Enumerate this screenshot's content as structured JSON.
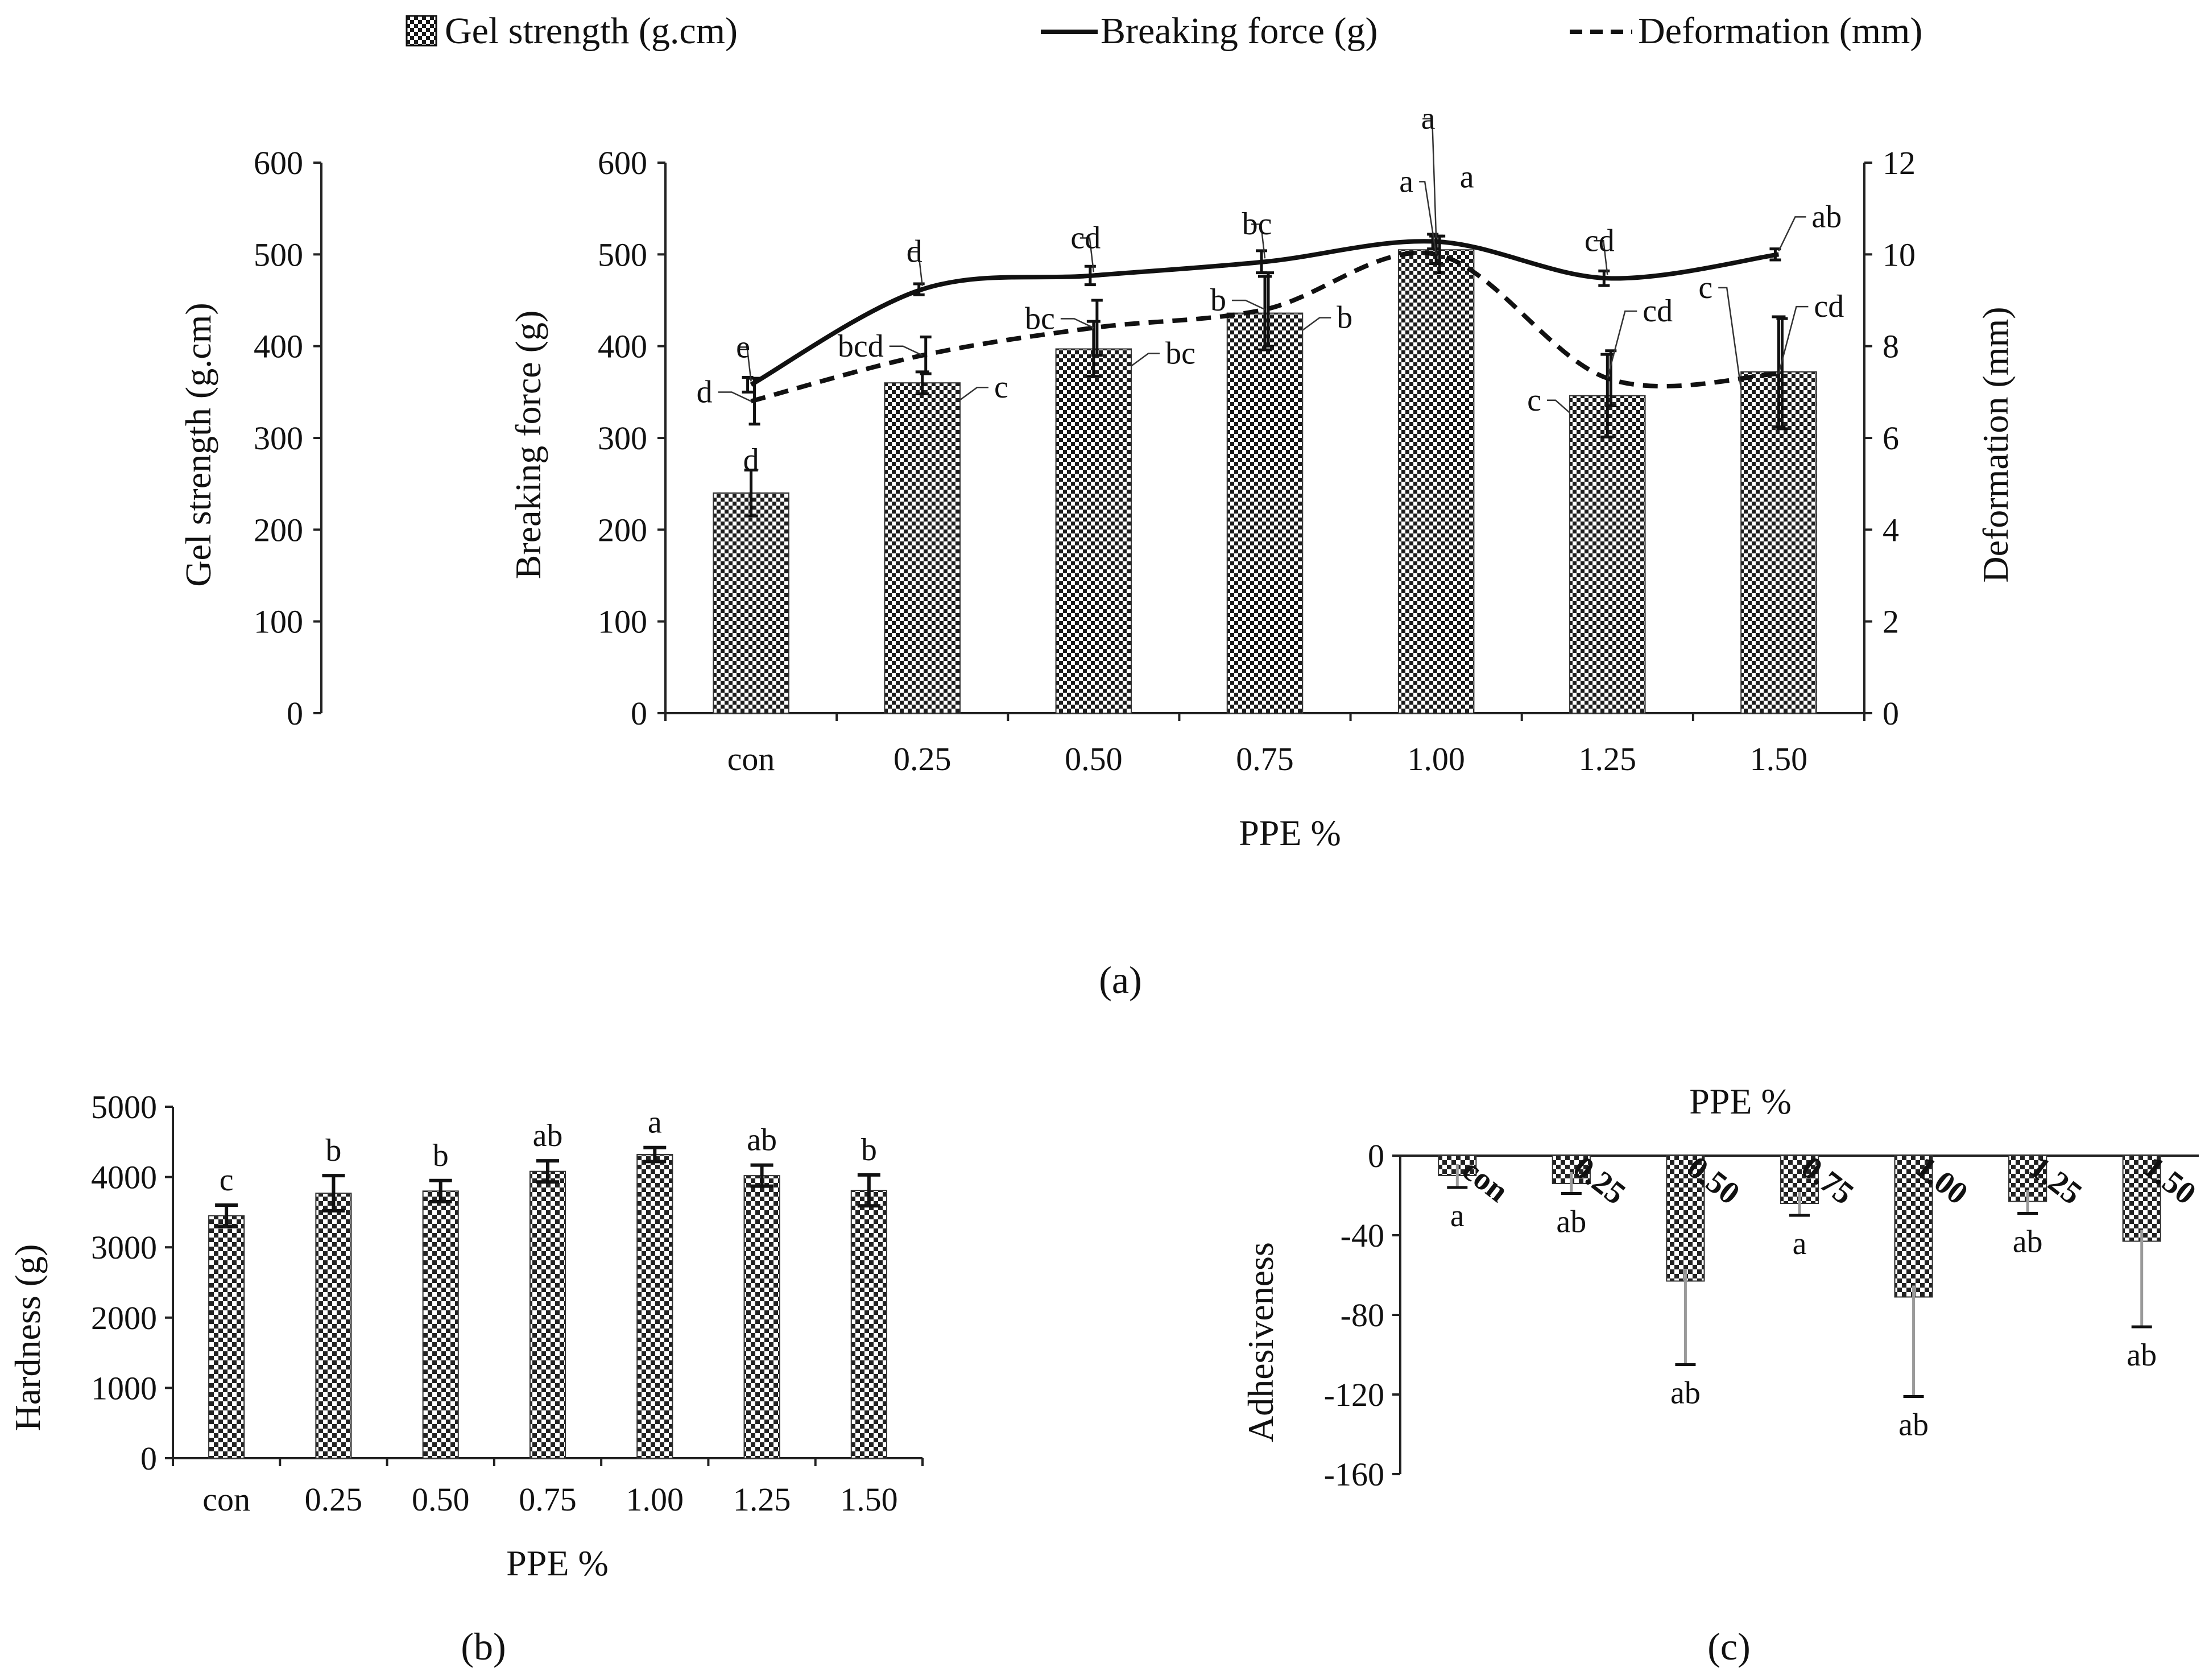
{
  "colors": {
    "ink": "#111111",
    "bar_hatch": "#222222",
    "error_gray": "#9a9a9a"
  },
  "panels": {
    "a": "(a)",
    "b": "(b)",
    "c": "(c)"
  },
  "chart_data": [
    {
      "type": "bar",
      "panel": "a",
      "xlabel": "PPE %",
      "ylabel_gel": "Gel strength (g.cm)",
      "ylabel": "Breaking force (g)",
      "y2label": "Deformation (mm)",
      "categories": [
        "con",
        "0.25",
        "0.50",
        "0.75",
        "1.00",
        "1.25",
        "1.50"
      ],
      "ylim": [
        0,
        600
      ],
      "y2lim": [
        0,
        12
      ],
      "y_ticks": [
        "0",
        "100",
        "200",
        "300",
        "400",
        "500",
        "600"
      ],
      "y2_ticks": [
        "0",
        "2",
        "4",
        "6",
        "8",
        "10",
        "12"
      ],
      "legend": [
        "Gel strength (g.cm)",
        "Breaking force (g)",
        "Deformation (mm)"
      ],
      "legend_position": "top",
      "series": [
        {
          "name": "Gel strength (g.cm)",
          "kind": "bar",
          "values": [
            240,
            360,
            397,
            436,
            505,
            346,
            372
          ],
          "errors": [
            25,
            12,
            30,
            40,
            15,
            45,
            60
          ],
          "letters": [
            "d",
            "c",
            "bc",
            "b",
            "a",
            "c",
            "c"
          ]
        },
        {
          "name": "Breaking force (g)",
          "kind": "line-solid",
          "values": [
            358,
            462,
            477,
            492,
            514,
            474,
            500
          ],
          "errors": [
            8,
            6,
            10,
            12,
            8,
            8,
            6
          ],
          "letters": [
            "e",
            "d",
            "cd",
            "bc",
            "a",
            "cd",
            "ab"
          ]
        },
        {
          "name": "Deformation (mm)",
          "kind": "line-dashed",
          "axis": "right",
          "values": [
            6.8,
            7.8,
            8.4,
            8.8,
            10.0,
            7.3,
            7.4
          ],
          "errors": [
            0.5,
            0.4,
            0.6,
            0.8,
            0.4,
            0.6,
            1.2
          ],
          "letters": [
            "d",
            "bcd",
            "bc",
            "b",
            "a",
            "cd",
            "cd"
          ]
        }
      ]
    },
    {
      "type": "bar",
      "panel": "b",
      "xlabel": "PPE %",
      "ylabel": "Hardness (g)",
      "categories": [
        "con",
        "0.25",
        "0.50",
        "0.75",
        "1.00",
        "1.25",
        "1.50"
      ],
      "ylim": [
        0,
        5000
      ],
      "y_ticks": [
        "0",
        "1000",
        "2000",
        "3000",
        "4000",
        "5000"
      ],
      "values": [
        3450,
        3770,
        3800,
        4080,
        4320,
        4020,
        3810
      ],
      "errors": [
        150,
        250,
        150,
        150,
        100,
        150,
        220
      ],
      "letters": [
        "c",
        "b",
        "b",
        "ab",
        "a",
        "ab",
        "b"
      ]
    },
    {
      "type": "bar",
      "panel": "c",
      "xlabel": "PPE %",
      "ylabel": "Adhesiveness",
      "categories": [
        "con",
        "0.25",
        "0.50",
        "0.75",
        "1.00",
        "1.25",
        "1.50"
      ],
      "ylim": [
        -160,
        0
      ],
      "y_ticks": [
        "0",
        "-40",
        "-80",
        "-120",
        "-160"
      ],
      "values": [
        -10,
        -14,
        -63,
        -24,
        -71,
        -23,
        -43
      ],
      "errors": [
        6,
        5,
        42,
        6,
        50,
        6,
        43
      ],
      "letters": [
        "a",
        "ab",
        "ab",
        "a",
        "ab",
        "ab",
        "ab"
      ]
    }
  ]
}
